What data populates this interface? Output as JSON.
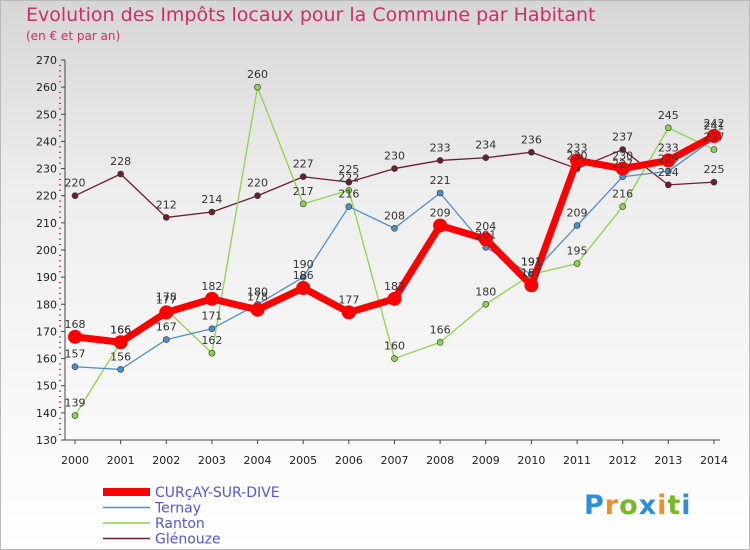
{
  "page": {
    "title": "Evolution des Impôts locaux pour la Commune par Habitant",
    "subtitle": "(en € et par an)"
  },
  "logo": {
    "text": "Proxiti",
    "letters": [
      "P",
      "r",
      "o",
      "x",
      "i",
      "t",
      "i"
    ],
    "colors": [
      "#2d8fd9",
      "#f28c28",
      "#78b928",
      "#2d8fd9",
      "#f28c28",
      "#78b928",
      "#2d8fd9"
    ]
  },
  "chart_data": {
    "type": "line",
    "title": "Evolution des Impôts locaux pour la Commune par Habitant",
    "subtitle": "(en € et par an)",
    "xlabel": "",
    "ylabel": "",
    "x": [
      2000,
      2001,
      2002,
      2003,
      2004,
      2005,
      2006,
      2007,
      2008,
      2009,
      2010,
      2011,
      2012,
      2013,
      2014
    ],
    "ylim": [
      130,
      270
    ],
    "yticks": [
      130,
      140,
      150,
      160,
      170,
      180,
      190,
      200,
      210,
      220,
      230,
      240,
      250,
      260,
      270
    ],
    "grid": false,
    "legend_position": "bottom-left",
    "series": [
      {
        "name": "Glénouze",
        "color": "#6b1e2e",
        "values": [
          220,
          228,
          212,
          214,
          220,
          227,
          225,
          230,
          233,
          234,
          236,
          230,
          237,
          224,
          225
        ],
        "labels": [
          "220",
          "228",
          "212",
          "214",
          "220",
          "227",
          "225",
          "230",
          "233",
          "234",
          "236",
          "230",
          "237",
          "224",
          "225"
        ]
      },
      {
        "name": "Ranton",
        "color": "#8cd44a",
        "values": [
          139,
          166,
          178,
          162,
          260,
          217,
          222,
          160,
          166,
          180,
          191,
          195,
          216,
          245,
          237
        ],
        "labels": [
          "139",
          "166",
          "178",
          "162",
          "260",
          "217",
          "222",
          "160",
          "166",
          "180",
          "191",
          "195",
          "216",
          "245",
          "237"
        ]
      },
      {
        "name": "Ternay",
        "color": "#4f8fc8",
        "values": [
          157,
          156,
          167,
          171,
          180,
          190,
          216,
          208,
          221,
          201,
          191,
          209,
          227,
          229,
          241
        ],
        "labels": [
          "157",
          "156",
          "167",
          "171",
          "180",
          "190",
          "216",
          "208",
          "221",
          "201",
          "191",
          "209",
          "227",
          "229",
          "241"
        ]
      },
      {
        "name": "CURçAY-SUR-DIVE",
        "color": "#ff0000",
        "values": [
          168,
          166,
          177,
          182,
          178,
          186,
          177,
          182,
          209,
          204,
          187,
          233,
          230,
          233,
          242
        ],
        "labels": [
          "168",
          "166",
          "177",
          "182",
          "178",
          "186",
          "177",
          "182",
          "209",
          "204",
          "187",
          "233",
          "230",
          "233",
          "242"
        ]
      }
    ],
    "legend": [
      "CURçAY-SUR-DIVE",
      "Ternay",
      "Ranton",
      "Glénouze"
    ]
  }
}
